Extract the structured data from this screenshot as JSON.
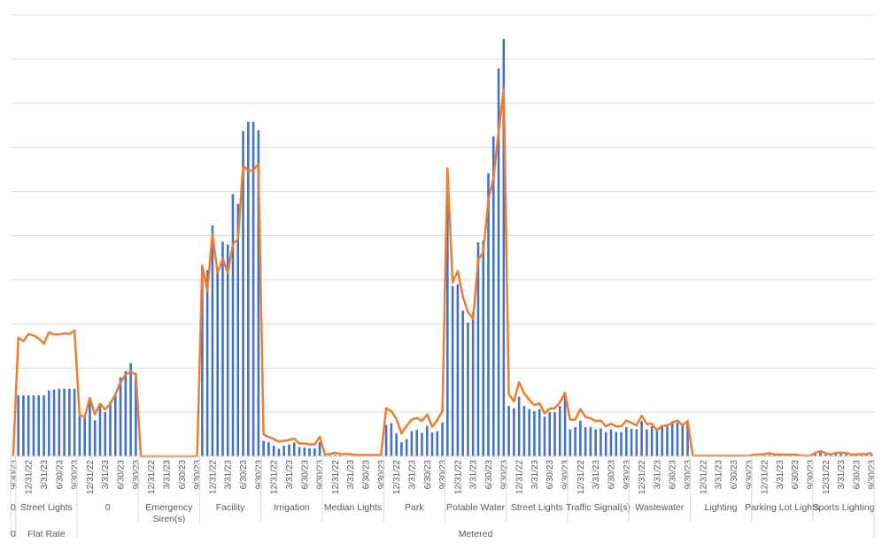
{
  "chart_data": {
    "type": "bar+line",
    "title": "",
    "xlabel": "",
    "ylabel": "",
    "ylim": [
      0,
      10
    ],
    "grid": true,
    "y_tick_labels_shown": false,
    "legend": "none",
    "colors": {
      "bars": "#4472C4",
      "line": "#ED7D31",
      "grid": "#D9D9D9",
      "text": "#595959"
    },
    "groups": [
      {
        "level2": "0",
        "level1": "0",
        "tick_labels": [
          "9/30/23"
        ],
        "bars": [
          0
        ],
        "line": [
          0
        ]
      },
      {
        "level2": "Flat Rate",
        "level1": "Street Lights",
        "tick_labels": [
          "12/31/22",
          "3/31/23",
          "6/30/23",
          "9/30/23"
        ],
        "bars": [
          1.38,
          1.38,
          1.38,
          1.38,
          1.38,
          1.38,
          1.49,
          1.51,
          1.53,
          1.53,
          1.53,
          1.53
        ],
        "line": [
          2.69,
          2.61,
          2.77,
          2.74,
          2.67,
          2.55,
          2.81,
          2.76,
          2.76,
          2.79,
          2.77,
          2.85
        ]
      },
      {
        "level2": "Metered",
        "level1": "0",
        "tick_labels": [
          "12/31/22",
          "3/31/23",
          "6/30/23",
          "9/30/23"
        ],
        "bars": [
          0.91,
          0.87,
          1.23,
          0.82,
          1.19,
          1.0,
          1.24,
          1.38,
          1.79,
          1.93,
          2.11,
          1.89
        ],
        "line": [
          0.94,
          0.89,
          1.32,
          0.95,
          1.19,
          1.06,
          1.19,
          1.4,
          1.68,
          1.85,
          1.92,
          1.85
        ]
      },
      {
        "level2": "Metered",
        "level1": "Emergency Siren(s)",
        "level1_lines": [
          "Emergency",
          "Siren(s)"
        ],
        "tick_labels": [
          "12/31/22",
          "3/31/23",
          "6/30/23",
          "9/30/23"
        ],
        "bars": [
          0,
          0,
          0,
          0,
          0,
          0,
          0,
          0,
          0,
          0,
          0,
          0
        ],
        "line": [
          0,
          0,
          0,
          0,
          0,
          0,
          0,
          0,
          0,
          0,
          0,
          0
        ]
      },
      {
        "level2": "Metered",
        "level1": "Facility",
        "tick_labels": [
          "12/31/22",
          "3/31/23",
          "6/30/23",
          "9/30/23"
        ],
        "bars": [
          4.3,
          4.22,
          5.23,
          4.18,
          4.86,
          4.8,
          5.94,
          5.72,
          7.37,
          7.58,
          7.58,
          7.39
        ],
        "line": [
          4.32,
          3.75,
          5.04,
          4.16,
          4.48,
          4.16,
          4.81,
          4.92,
          6.58,
          6.47,
          6.48,
          6.63
        ]
      },
      {
        "level2": "Metered",
        "level1": "Irrigation",
        "tick_labels": [
          "12/31/22",
          "3/31/23",
          "6/30/23",
          "9/30/23"
        ],
        "bars": [
          0.35,
          0.32,
          0.24,
          0.17,
          0.24,
          0.27,
          0.31,
          0.21,
          0.2,
          0.18,
          0.18,
          0.32
        ],
        "line": [
          0.49,
          0.44,
          0.39,
          0.33,
          0.35,
          0.37,
          0.4,
          0.29,
          0.29,
          0.27,
          0.27,
          0.44
        ]
      },
      {
        "level2": "Metered",
        "level1": "Median Lights",
        "tick_labels": [
          "12/31/22",
          "3/31/23",
          "6/30/23",
          "9/30/23"
        ],
        "bars": [
          0.02,
          0.02,
          0.03,
          0.02,
          0.01,
          0.01,
          0,
          0,
          0,
          0,
          0,
          0
        ],
        "line": [
          0.04,
          0.05,
          0.08,
          0.05,
          0.05,
          0.05,
          0.03,
          0.03,
          0.03,
          0.03,
          0.03,
          0.03
        ]
      },
      {
        "level2": "Metered",
        "level1": "Park",
        "tick_labels": [
          "12/31/22",
          "3/31/23",
          "6/30/23",
          "9/30/23"
        ],
        "bars": [
          0.71,
          0.75,
          0.52,
          0.32,
          0.39,
          0.57,
          0.6,
          0.53,
          0.69,
          0.54,
          0.57,
          0.77
        ],
        "line": [
          1.09,
          1.02,
          0.85,
          0.52,
          0.69,
          0.83,
          0.87,
          0.8,
          0.95,
          0.67,
          0.82,
          1.03
        ]
      },
      {
        "level2": "Metered",
        "level1": "Potable Water",
        "tick_labels": [
          "12/31/22",
          "3/31/23",
          "6/30/23",
          "9/30/23"
        ],
        "bars": [
          5.9,
          3.86,
          3.9,
          3.3,
          3.03,
          3.27,
          4.85,
          4.89,
          6.41,
          7.25,
          8.79,
          9.46
        ],
        "line": [
          6.53,
          3.94,
          4.2,
          3.63,
          3.27,
          3.11,
          4.46,
          4.62,
          5.81,
          6.31,
          7.35,
          8.32
        ]
      },
      {
        "level2": "Metered",
        "level1": "Street Lights",
        "tick_labels": [
          "12/31/22",
          "3/31/23",
          "6/30/23",
          "9/30/23"
        ],
        "bars": [
          1.14,
          1.09,
          1.35,
          1.14,
          1.07,
          1.02,
          1.07,
          0.9,
          1.0,
          1.0,
          1.14,
          1.44
        ],
        "line": [
          1.41,
          1.24,
          1.68,
          1.42,
          1.28,
          1.16,
          1.2,
          0.97,
          1.08,
          1.09,
          1.22,
          1.44
        ]
      },
      {
        "level2": "Metered",
        "level1": "Traffic Signal(s)",
        "tick_labels": [
          "12/31/22",
          "3/31/23",
          "6/30/23",
          "9/30/23"
        ],
        "bars": [
          0.61,
          0.66,
          0.81,
          0.66,
          0.66,
          0.61,
          0.63,
          0.55,
          0.61,
          0.55,
          0.55,
          0.66
        ],
        "line": [
          0.83,
          0.83,
          1.07,
          0.89,
          0.86,
          0.8,
          0.81,
          0.68,
          0.74,
          0.68,
          0.68,
          0.81
        ]
      },
      {
        "level2": "Metered",
        "level1": "Wastewater",
        "tick_labels": [
          "12/31/22",
          "3/31/23",
          "6/30/23",
          "9/30/23"
        ],
        "bars": [
          0.62,
          0.61,
          0.8,
          0.61,
          0.68,
          0.59,
          0.66,
          0.68,
          0.8,
          0.76,
          0.73,
          0.8
        ],
        "line": [
          0.76,
          0.7,
          0.92,
          0.73,
          0.74,
          0.59,
          0.69,
          0.7,
          0.76,
          0.81,
          0.7,
          0.8
        ]
      },
      {
        "level2": "Metered",
        "level1": "Lighting",
        "tick_labels": [
          "12/31/22",
          "3/31/23",
          "6/30/23",
          "9/30/23"
        ],
        "bars": [
          0,
          0,
          0,
          0,
          0,
          0,
          0,
          0,
          0,
          0,
          0,
          0
        ],
        "line": [
          0.01,
          0.01,
          0.01,
          0.01,
          0.01,
          0.01,
          0.01,
          0.01,
          0.01,
          0.01,
          0.01,
          0.01
        ]
      },
      {
        "level2": "Metered",
        "level1": "Parking Lot Lights",
        "tick_labels": [
          "12/31/22",
          "3/31/23",
          "6/30/23",
          "9/30/23"
        ],
        "bars": [
          0,
          0,
          0.02,
          0.03,
          0.02,
          0.02,
          0.02,
          0.02,
          0.02,
          0.01,
          0,
          0
        ],
        "line": [
          0.04,
          0.04,
          0.05,
          0.07,
          0.04,
          0.04,
          0.04,
          0.04,
          0.04,
          0.02,
          0.01,
          0.01
        ]
      },
      {
        "level2": "Metered",
        "level1": "Sports Lighting",
        "tick_labels": [
          "12/31/22",
          "3/31/23",
          "6/30/23",
          "9/30/23"
        ],
        "bars": [
          0.05,
          0.09,
          0.04,
          0.04,
          0.05,
          0.05,
          0.05,
          0.03,
          0.02,
          0.03,
          0.03,
          0.05
        ],
        "line": [
          0.08,
          0.12,
          0.07,
          0.04,
          0.08,
          0.08,
          0.08,
          0.04,
          0.04,
          0.05,
          0.05,
          0.08
        ]
      }
    ]
  }
}
